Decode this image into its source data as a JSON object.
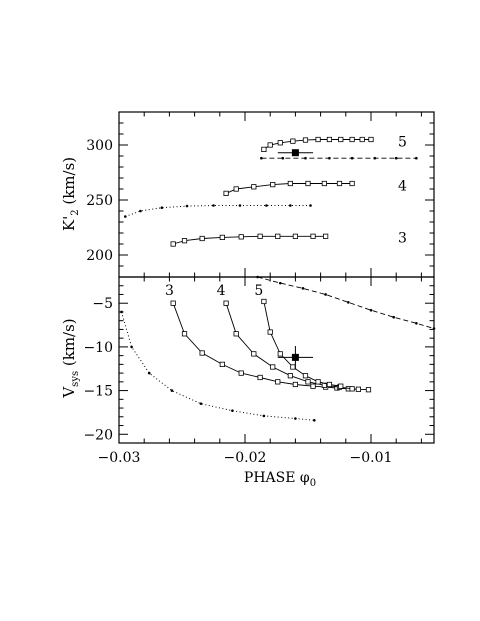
{
  "chart_data": [
    {
      "type": "line",
      "panel": "top",
      "ylabel": "K'2 (km/s)",
      "xlim": [
        -0.03,
        -0.005
      ],
      "ylim": [
        180,
        330
      ],
      "yticks": [
        200,
        250,
        300
      ],
      "grid": false,
      "series": [
        {
          "name": "3",
          "style": "solid-square",
          "x": [
            -0.0257,
            -0.0248,
            -0.0234,
            -0.0218,
            -0.0203,
            -0.0188,
            -0.0174,
            -0.016,
            -0.0146,
            -0.0136
          ],
          "y": [
            210,
            213,
            215,
            216,
            216.5,
            217,
            217,
            217,
            217,
            217
          ]
        },
        {
          "name": "4",
          "style": "solid-square",
          "x": [
            -0.0215,
            -0.0207,
            -0.0193,
            -0.0178,
            -0.0164,
            -0.015,
            -0.0137,
            -0.0125,
            -0.0115
          ],
          "y": [
            256,
            260,
            262,
            264,
            265,
            265,
            265,
            265,
            265
          ]
        },
        {
          "name": "5",
          "style": "solid-square",
          "x": [
            -0.0185,
            -0.018,
            -0.0172,
            -0.0162,
            -0.0152,
            -0.0142,
            -0.0133,
            -0.0124,
            -0.0115,
            -0.0107,
            -0.01
          ],
          "y": [
            296,
            300,
            302,
            303.5,
            304.5,
            305,
            305,
            305,
            305,
            305,
            305
          ]
        },
        {
          "name": "dotted",
          "style": "dotted-small",
          "x": [
            -0.0295,
            -0.0283,
            -0.0266,
            -0.0246,
            -0.0225,
            -0.0204,
            -0.0183,
            -0.0164,
            -0.0148
          ],
          "y": [
            235,
            240,
            243,
            244.5,
            245,
            245,
            245,
            245,
            245
          ]
        },
        {
          "name": "dashed",
          "style": "dashed-small",
          "x": [
            -0.0187,
            -0.017,
            -0.0152,
            -0.0133,
            -0.0115,
            -0.0097,
            -0.008,
            -0.0064
          ],
          "y": [
            288,
            288,
            288,
            288,
            288,
            288,
            288,
            288
          ]
        }
      ],
      "observed": {
        "x": -0.016,
        "y": 293,
        "xerr": 0.0014,
        "yerr": 2
      },
      "labels": [
        {
          "text": "5",
          "x": -0.0075,
          "y": 303
        },
        {
          "text": "4",
          "x": -0.0075,
          "y": 263
        },
        {
          "text": "3",
          "x": -0.0075,
          "y": 216
        }
      ]
    },
    {
      "type": "line",
      "panel": "bottom",
      "ylabel": "Vsys (km/s)",
      "xlabel": "PHASE φ0",
      "xlim": [
        -0.03,
        -0.005
      ],
      "ylim": [
        -21,
        -2
      ],
      "yticks": [
        -20,
        -15,
        -10,
        -5
      ],
      "xticks": [
        -0.03,
        -0.02,
        -0.01
      ],
      "grid": false,
      "series": [
        {
          "name": "3",
          "style": "solid-square",
          "x": [
            -0.0257,
            -0.0248,
            -0.0234,
            -0.0218,
            -0.0203,
            -0.0188,
            -0.0174,
            -0.016,
            -0.0146,
            -0.0136,
            -0.0127,
            -0.0118,
            -0.011,
            -0.0102
          ],
          "y": [
            -5.0,
            -8.5,
            -10.7,
            -12.0,
            -13.0,
            -13.5,
            -14.0,
            -14.3,
            -14.5,
            -14.6,
            -14.7,
            -14.8,
            -14.85,
            -14.9
          ]
        },
        {
          "name": "4",
          "style": "solid-square",
          "x": [
            -0.0215,
            -0.0207,
            -0.0193,
            -0.0178,
            -0.0164,
            -0.015,
            -0.0137,
            -0.0125,
            -0.0115
          ],
          "y": [
            -5.0,
            -8.5,
            -10.8,
            -12.3,
            -13.3,
            -14.0,
            -14.4,
            -14.6,
            -14.8
          ]
        },
        {
          "name": "5",
          "style": "solid-square",
          "x": [
            -0.0185,
            -0.018,
            -0.0172,
            -0.0162,
            -0.0152,
            -0.0142,
            -0.0133,
            -0.0124
          ],
          "y": [
            -4.8,
            -8.3,
            -10.8,
            -12.3,
            -13.3,
            -14.0,
            -14.3,
            -14.5
          ]
        },
        {
          "name": "dotted",
          "style": "dotted-small",
          "x": [
            -0.0298,
            -0.029,
            -0.0276,
            -0.0258,
            -0.0235,
            -0.021,
            -0.0185,
            -0.016,
            -0.0145
          ],
          "y": [
            -6.0,
            -10.0,
            -13.0,
            -15.0,
            -16.5,
            -17.3,
            -17.9,
            -18.2,
            -18.4
          ]
        },
        {
          "name": "dashed",
          "style": "dashed-small",
          "x": [
            -0.019,
            -0.0172,
            -0.0154,
            -0.0136,
            -0.0118,
            -0.01,
            -0.0082,
            -0.0064,
            -0.005
          ],
          "y": [
            -2.0,
            -2.7,
            -3.3,
            -4.0,
            -4.9,
            -5.8,
            -6.6,
            -7.3,
            -7.9
          ]
        }
      ],
      "observed": {
        "x": -0.016,
        "y": -11.2,
        "xerr": 0.0014,
        "yerr": 1.3
      },
      "labels": [
        {
          "text": "3",
          "x": -0.026,
          "y": -3.5
        },
        {
          "text": "4",
          "x": -0.0219,
          "y": -3.5
        },
        {
          "text": "5",
          "x": -0.0189,
          "y": -3.5
        }
      ]
    }
  ],
  "axes": {
    "top_ylabel_main": "K'",
    "top_ylabel_sub": "2",
    "top_ylabel_unit": " (km/s)",
    "bottom_ylabel_main": "V",
    "bottom_ylabel_sub": "sys",
    "bottom_ylabel_unit": " (km/s)",
    "xlabel_main": "PHASE φ",
    "xlabel_sub": "0",
    "top_ytick_labels": [
      "200",
      "250",
      "300"
    ],
    "bottom_ytick_labels": [
      "−20",
      "−15",
      "−10",
      "−5"
    ],
    "xtick_labels": [
      "−0.03",
      "−0.02",
      "−0.01"
    ]
  }
}
